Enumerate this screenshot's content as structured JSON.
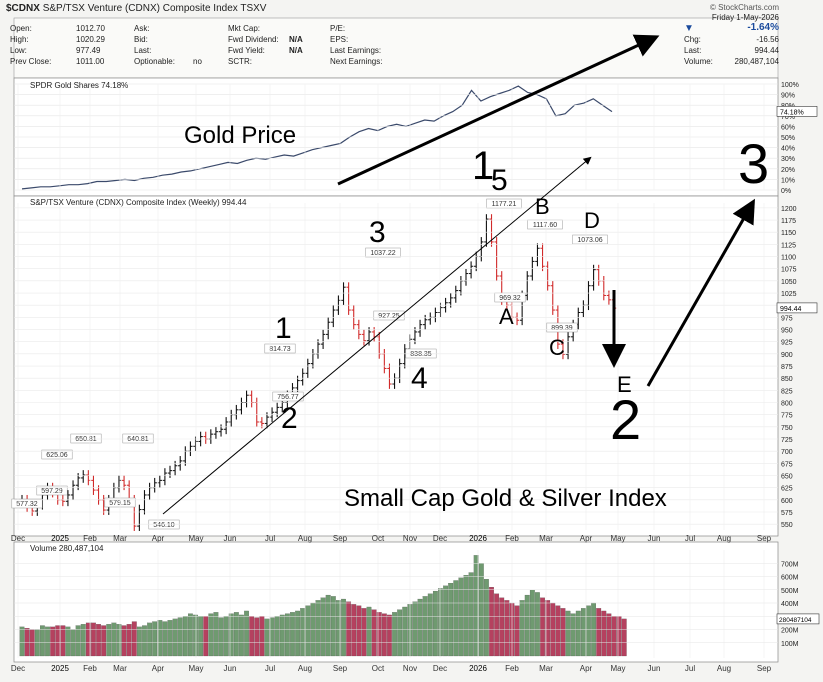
{
  "header": {
    "symbol": "$CDNX",
    "name": "S&P/TSX Venture (CDNX) Composite Index  TSXV",
    "watermark": "© StockCharts.com",
    "date": "Friday   1-May-2026",
    "change_pct": "-1.64%",
    "chg_label": "Chg:",
    "chg_value": "-16.56",
    "last_label": "Last:",
    "last_value": "994.44",
    "volume_label": "Volume:",
    "volume_value": "280,487,104",
    "col1": [
      [
        "Open:",
        "1012.70"
      ],
      [
        "High:",
        "1020.29"
      ],
      [
        "Low:",
        "977.49"
      ],
      [
        "Prev Close:",
        "1011.00"
      ]
    ],
    "col2": [
      [
        "Ask:",
        ""
      ],
      [
        "Bid:",
        ""
      ],
      [
        "Last:",
        ""
      ],
      [
        "Optionable:",
        "no"
      ]
    ],
    "col3": [
      [
        "Mkt Cap:",
        ""
      ],
      [
        "Fwd Dividend:",
        "N/A"
      ],
      [
        "Fwd Yield:",
        "N/A"
      ],
      [
        "SCTR:",
        ""
      ]
    ],
    "col4": [
      "P/E:",
      "EPS:",
      "Last Earnings:",
      "Next Earnings:"
    ]
  },
  "annotations": {
    "gold_price": "Gold Price",
    "small_cap": "Small Cap Gold & Silver Index",
    "wave1": "1",
    "wave2": "2",
    "wave3": "3",
    "wave4": "4",
    "wave5": "1",
    "wave5b": "5",
    "waveA": "A",
    "waveB": "B",
    "waveC": "C",
    "waveD": "D",
    "waveE": "E",
    "big2": "2",
    "big3": "3"
  },
  "chart_data": [
    {
      "type": "line",
      "title": "SPDR Gold Shares 74.18%",
      "y_ticks": [
        "100%",
        "90%",
        "80%",
        "70%",
        "60%",
        "50%",
        "40%",
        "30%",
        "20%",
        "10%",
        "0%"
      ],
      "last_label": "74.18%",
      "series": [
        {
          "name": "SPDR Gold Shares",
          "values": [
            1,
            2,
            3,
            3,
            4,
            5,
            5,
            6,
            8,
            8,
            9,
            10,
            9,
            11,
            12,
            14,
            15,
            17,
            18,
            20,
            22,
            24,
            26,
            25,
            28,
            30,
            29,
            31,
            33,
            32,
            35,
            38,
            40,
            42,
            44,
            50,
            55,
            58,
            56,
            60,
            62,
            60,
            63,
            66,
            65,
            70,
            74,
            80,
            94,
            84,
            88,
            91,
            94,
            98,
            92,
            90,
            86,
            70,
            72,
            80,
            82,
            86,
            80,
            74
          ]
        }
      ],
      "ylim": [
        0,
        100
      ]
    },
    {
      "type": "candlestick",
      "title": "S&P/TSX Venture (CDNX) Composite Index (Weekly) 994.44",
      "x_ticks": [
        "Dec",
        "2025",
        "Feb",
        "Mar",
        "Apr",
        "May",
        "Jun",
        "Jul",
        "Aug",
        "Sep",
        "Oct",
        "Nov",
        "Dec",
        "2026",
        "Feb",
        "Mar",
        "Apr",
        "May",
        "Jun",
        "Jul",
        "Aug",
        "Sep"
      ],
      "y_ticks": [
        "1200",
        "1175",
        "1150",
        "1125",
        "1100",
        "1075",
        "1050",
        "1025",
        "1000",
        "975",
        "950",
        "925",
        "900",
        "875",
        "850",
        "825",
        "800",
        "775",
        "750",
        "725",
        "700",
        "675",
        "650",
        "625",
        "600",
        "575",
        "550"
      ],
      "ylim": [
        538,
        1210
      ],
      "last_label": "994.44",
      "closes": [
        600,
        585,
        577,
        590,
        610,
        625,
        615,
        600,
        597,
        610,
        630,
        645,
        651,
        640,
        620,
        600,
        579,
        600,
        625,
        640,
        630,
        600,
        546,
        580,
        610,
        625,
        635,
        640,
        655,
        660,
        670,
        680,
        700,
        710,
        720,
        730,
        725,
        735,
        740,
        745,
        760,
        775,
        785,
        800,
        815,
        800,
        760,
        757,
        770,
        780,
        790,
        800,
        815,
        830,
        845,
        860,
        880,
        900,
        920,
        940,
        965,
        990,
        1010,
        1037,
        990,
        960,
        940,
        927,
        945,
        935,
        900,
        870,
        838,
        850,
        880,
        910,
        930,
        945,
        960,
        970,
        975,
        985,
        995,
        1005,
        1015,
        1030,
        1050,
        1065,
        1080,
        1100,
        1130,
        1177,
        1130,
        1060,
        1010,
        1000,
        975,
        969,
        1020,
        1060,
        1090,
        1117,
        1080,
        1040,
        990,
        920,
        899,
        935,
        960,
        985,
        1000,
        1040,
        1073,
        1050,
        1020,
        1011,
        994
      ],
      "data_labels": [
        {
          "text": "577.32",
          "close": 577
        },
        {
          "text": "597.29",
          "close": 597
        },
        {
          "text": "625.06",
          "close": 625
        },
        {
          "text": "650.81",
          "close": 651
        },
        {
          "text": "579.15",
          "close": 579
        },
        {
          "text": "640.81",
          "close": 641
        },
        {
          "text": "546.10",
          "close": 546
        },
        {
          "text": "814.73",
          "close": 815
        },
        {
          "text": "756.77",
          "close": 757
        },
        {
          "text": "1037.22",
          "close": 1037
        },
        {
          "text": "927.25",
          "close": 927
        },
        {
          "text": "838.35",
          "close": 838
        },
        {
          "text": "1177.21",
          "close": 1177
        },
        {
          "text": "969.32",
          "close": 969
        },
        {
          "text": "1117.60",
          "close": 1117
        },
        {
          "text": "899.39",
          "close": 899
        },
        {
          "text": "1073.06",
          "close": 1073
        }
      ]
    },
    {
      "type": "bar",
      "title": "Volume 280,487,104",
      "y_ticks": [
        "700M",
        "600M",
        "500M",
        "400M",
        "300M",
        "200M",
        "100M"
      ],
      "last_label": "280487104",
      "ylim": [
        0,
        800
      ],
      "values": [
        220,
        210,
        200,
        200,
        230,
        220,
        220,
        230,
        230,
        220,
        200,
        230,
        240,
        250,
        250,
        240,
        230,
        240,
        250,
        240,
        230,
        240,
        260,
        220,
        230,
        250,
        260,
        270,
        260,
        270,
        280,
        290,
        300,
        320,
        310,
        300,
        300,
        320,
        330,
        290,
        300,
        320,
        330,
        310,
        340,
        300,
        290,
        300,
        280,
        290,
        300,
        310,
        320,
        330,
        340,
        360,
        380,
        400,
        420,
        440,
        460,
        450,
        420,
        430,
        410,
        390,
        380,
        360,
        370,
        350,
        330,
        320,
        310,
        330,
        350,
        370,
        390,
        410,
        430,
        450,
        470,
        490,
        510,
        530,
        550,
        570,
        590,
        610,
        630,
        760,
        700,
        580,
        520,
        470,
        440,
        420,
        400,
        380,
        420,
        460,
        500,
        480,
        440,
        420,
        400,
        380,
        360,
        340,
        320,
        340,
        360,
        380,
        400,
        360,
        340,
        320,
        300,
        300,
        280
      ]
    }
  ]
}
